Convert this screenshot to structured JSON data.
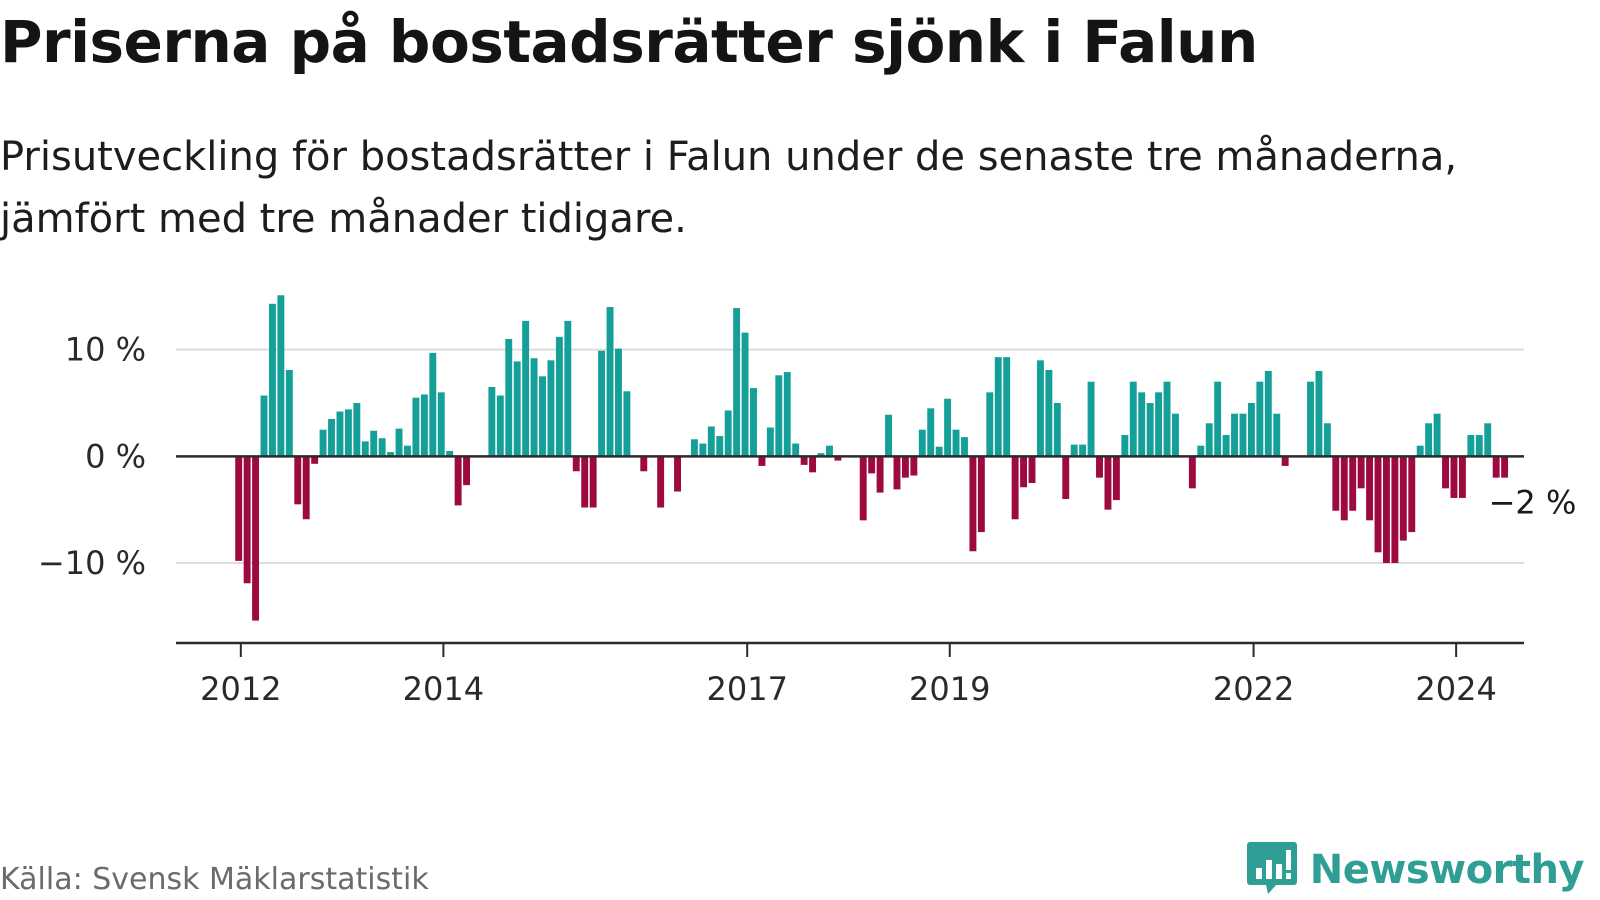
{
  "title": "Priserna på bostadsrätter sjönk i Falun",
  "subtitle": "Prisutveckling för bostadsrätter i Falun under de senaste tre månaderna, jämfört med tre månader tidigare.",
  "source": "Källa: Svensk Mäklarstatistik",
  "brand": {
    "name": "Newsworthy",
    "icon": "newsworthy-logo-icon"
  },
  "colors": {
    "positive": "#14a099",
    "negative": "#9c0a40",
    "grid": "#dddddd",
    "axis": "#2b2b2b",
    "brand": "#2f9e94"
  },
  "chart_data": {
    "type": "bar",
    "title": "Priserna på bostadsrätter sjönk i Falun",
    "xlabel": "",
    "ylabel": "",
    "ylim": [
      -17.5,
      15.5
    ],
    "y_ticks": [
      {
        "value": 10,
        "label": "10 %"
      },
      {
        "value": 0,
        "label": "0 %"
      },
      {
        "value": -10,
        "label": "−10 %"
      }
    ],
    "x_ticks": [
      {
        "x": 2012,
        "label": "2012"
      },
      {
        "x": 2014,
        "label": "2014"
      },
      {
        "x": 2017,
        "label": "2017"
      },
      {
        "x": 2019,
        "label": "2019"
      },
      {
        "x": 2022,
        "label": "2022"
      },
      {
        "x": 2024,
        "label": "2024"
      }
    ],
    "x_start": 2011.36,
    "x_end": 2024.67,
    "step": 0.08333,
    "first_x": 2011.979,
    "values": [
      -9.8,
      -11.9,
      -15.4,
      5.7,
      14.3,
      15.1,
      8.1,
      -4.5,
      -5.9,
      -0.7,
      2.5,
      3.5,
      4.2,
      4.4,
      5.0,
      1.4,
      2.4,
      1.7,
      0.4,
      2.6,
      1.0,
      5.5,
      5.8,
      9.7,
      6.0,
      0.5,
      -4.6,
      -2.7,
      0,
      0,
      6.5,
      5.7,
      11.0,
      8.9,
      12.7,
      9.2,
      7.5,
      9.0,
      11.2,
      12.7,
      -1.4,
      -4.8,
      -4.8,
      9.9,
      14.0,
      10.1,
      6.1,
      0,
      -1.4,
      0,
      -4.8,
      0,
      -3.3,
      0,
      1.6,
      1.2,
      2.8,
      1.9,
      4.3,
      13.9,
      11.6,
      6.4,
      -0.9,
      2.7,
      7.6,
      7.9,
      1.2,
      -0.8,
      -1.5,
      0.3,
      1.0,
      -0.4,
      0,
      0,
      -6.0,
      -1.6,
      -3.4,
      3.9,
      -3.1,
      -2.0,
      -1.8,
      2.5,
      4.5,
      0.9,
      5.4,
      2.5,
      1.8,
      -8.9,
      -7.1,
      6.0,
      9.3,
      9.3,
      -5.9,
      -2.9,
      -2.5,
      9.0,
      8.1,
      5.0,
      -4.0,
      1.1,
      1.1,
      7.0,
      -2.0,
      -5.0,
      -4.1,
      2.0,
      7.0,
      6.0,
      5.0,
      6.0,
      7.0,
      4.0,
      0,
      -3.0,
      1.0,
      3.1,
      7.0,
      2.0,
      4.0,
      4.0,
      5.0,
      7.0,
      8.0,
      4.0,
      -0.9,
      0,
      0,
      7.0,
      8.0,
      3.1,
      -5.1,
      -6.0,
      -5.1,
      -3.0,
      -6.0,
      -9.0,
      -10.0,
      -10.0,
      -7.9,
      -7.1,
      1.0,
      3.1,
      4.0,
      -3.0,
      -3.9,
      -3.9,
      2.0,
      2.0,
      3.1,
      -2.0,
      -2.0
    ],
    "end_label": "−2 %"
  }
}
